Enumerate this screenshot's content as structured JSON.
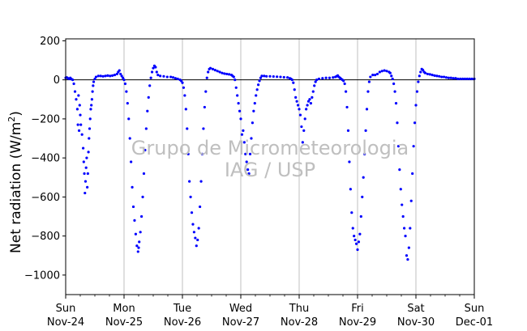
{
  "chart_data": {
    "type": "scatter",
    "title": "",
    "ylabel_main": "Net radiation (W/m",
    "ylabel_sup": "2",
    "ylabel_close": ")",
    "xlabel": "",
    "ylim": [
      -1100,
      210
    ],
    "xlim": [
      0,
      7
    ],
    "yticks": [
      200,
      0,
      -200,
      -400,
      -600,
      -800,
      -1000
    ],
    "ytick_labels": [
      "200",
      "0",
      "−200",
      "−400",
      "−600",
      "−800",
      "−1000"
    ],
    "xticks": [
      {
        "x": 0,
        "day": "Sun",
        "date": "Nov-24"
      },
      {
        "x": 1,
        "day": "Mon",
        "date": "Nov-25"
      },
      {
        "x": 2,
        "day": "Tue",
        "date": "Nov-26"
      },
      {
        "x": 3,
        "day": "Wed",
        "date": "Nov-27"
      },
      {
        "x": 4,
        "day": "Thu",
        "date": "Nov-28"
      },
      {
        "x": 5,
        "day": "Fri",
        "date": "Nov-29"
      },
      {
        "x": 6,
        "day": "Sat",
        "date": "Nov-30"
      },
      {
        "x": 7,
        "day": "Sun",
        "date": "Dec-01"
      }
    ],
    "minor_ticks_per_day": 3,
    "grid": "vertical major lines",
    "zero_line": true,
    "marker_color": "#0000ff",
    "watermark": [
      "Grupo de Micrometeorologia",
      "IAG / USP"
    ],
    "series": [
      {
        "points": [
          [
            0.0,
            10
          ],
          [
            0.02,
            12
          ],
          [
            0.04,
            8
          ],
          [
            0.06,
            5
          ],
          [
            0.08,
            10
          ],
          [
            0.1,
            4
          ],
          [
            0.12,
            0
          ],
          [
            0.14,
            -20
          ],
          [
            0.16,
            -60
          ],
          [
            0.18,
            -100
          ],
          [
            0.2,
            -150
          ],
          [
            0.21,
            -230
          ],
          [
            0.22,
            -80
          ],
          [
            0.23,
            -260
          ],
          [
            0.24,
            -130
          ],
          [
            0.25,
            -180
          ],
          [
            0.26,
            -230
          ],
          [
            0.28,
            -280
          ],
          [
            0.3,
            -350
          ],
          [
            0.31,
            -420
          ],
          [
            0.32,
            -480
          ],
          [
            0.33,
            -580
          ],
          [
            0.34,
            -520
          ],
          [
            0.35,
            -450
          ],
          [
            0.36,
            -400
          ],
          [
            0.37,
            -550
          ],
          [
            0.38,
            -480
          ],
          [
            0.39,
            -370
          ],
          [
            0.4,
            -300
          ],
          [
            0.41,
            -250
          ],
          [
            0.42,
            -200
          ],
          [
            0.43,
            -150
          ],
          [
            0.44,
            -130
          ],
          [
            0.45,
            -100
          ],
          [
            0.46,
            -60
          ],
          [
            0.47,
            -30
          ],
          [
            0.48,
            -10
          ],
          [
            0.5,
            5
          ],
          [
            0.52,
            15
          ],
          [
            0.56,
            20
          ],
          [
            0.6,
            20
          ],
          [
            0.64,
            18
          ],
          [
            0.68,
            20
          ],
          [
            0.72,
            22
          ],
          [
            0.76,
            20
          ],
          [
            0.8,
            22
          ],
          [
            0.84,
            25
          ],
          [
            0.88,
            30
          ],
          [
            0.9,
            40
          ],
          [
            0.92,
            48
          ],
          [
            0.94,
            30
          ],
          [
            0.96,
            20
          ],
          [
            0.98,
            10
          ],
          [
            1.0,
            0
          ],
          [
            1.02,
            -20
          ],
          [
            1.04,
            -60
          ],
          [
            1.06,
            -120
          ],
          [
            1.08,
            -200
          ],
          [
            1.1,
            -300
          ],
          [
            1.12,
            -420
          ],
          [
            1.14,
            -550
          ],
          [
            1.16,
            -650
          ],
          [
            1.18,
            -720
          ],
          [
            1.2,
            -790
          ],
          [
            1.22,
            -850
          ],
          [
            1.24,
            -880
          ],
          [
            1.25,
            -860
          ],
          [
            1.26,
            -830
          ],
          [
            1.28,
            -780
          ],
          [
            1.3,
            -700
          ],
          [
            1.32,
            -600
          ],
          [
            1.34,
            -480
          ],
          [
            1.36,
            -360
          ],
          [
            1.38,
            -250
          ],
          [
            1.4,
            -160
          ],
          [
            1.42,
            -90
          ],
          [
            1.44,
            -30
          ],
          [
            1.46,
            10
          ],
          [
            1.48,
            40
          ],
          [
            1.5,
            60
          ],
          [
            1.52,
            72
          ],
          [
            1.54,
            65
          ],
          [
            1.56,
            40
          ],
          [
            1.58,
            25
          ],
          [
            1.62,
            20
          ],
          [
            1.68,
            18
          ],
          [
            1.74,
            15
          ],
          [
            1.8,
            15
          ],
          [
            1.84,
            12
          ],
          [
            1.88,
            8
          ],
          [
            1.92,
            5
          ],
          [
            1.96,
            0
          ],
          [
            1.98,
            -5
          ],
          [
            2.0,
            -15
          ],
          [
            2.02,
            -40
          ],
          [
            2.04,
            -80
          ],
          [
            2.06,
            -150
          ],
          [
            2.08,
            -250
          ],
          [
            2.1,
            -380
          ],
          [
            2.12,
            -520
          ],
          [
            2.14,
            -600
          ],
          [
            2.16,
            -680
          ],
          [
            2.18,
            -740
          ],
          [
            2.2,
            -780
          ],
          [
            2.22,
            -810
          ],
          [
            2.24,
            -850
          ],
          [
            2.26,
            -820
          ],
          [
            2.28,
            -760
          ],
          [
            2.3,
            -650
          ],
          [
            2.32,
            -520
          ],
          [
            2.34,
            -380
          ],
          [
            2.36,
            -250
          ],
          [
            2.38,
            -140
          ],
          [
            2.4,
            -60
          ],
          [
            2.42,
            10
          ],
          [
            2.44,
            40
          ],
          [
            2.46,
            55
          ],
          [
            2.48,
            60
          ],
          [
            2.52,
            55
          ],
          [
            2.56,
            50
          ],
          [
            2.6,
            45
          ],
          [
            2.64,
            40
          ],
          [
            2.68,
            35
          ],
          [
            2.72,
            32
          ],
          [
            2.76,
            30
          ],
          [
            2.8,
            28
          ],
          [
            2.84,
            25
          ],
          [
            2.86,
            20
          ],
          [
            2.88,
            15
          ],
          [
            2.9,
            0
          ],
          [
            2.92,
            -40
          ],
          [
            2.94,
            -80
          ],
          [
            2.96,
            -120
          ],
          [
            2.98,
            -160
          ],
          [
            3.0,
            -200
          ],
          [
            3.02,
            -280
          ],
          [
            3.04,
            -260
          ],
          [
            3.06,
            -320
          ],
          [
            3.08,
            -380
          ],
          [
            3.1,
            -420
          ],
          [
            3.12,
            -460
          ],
          [
            3.14,
            -480
          ],
          [
            3.16,
            -380
          ],
          [
            3.18,
            -300
          ],
          [
            3.2,
            -220
          ],
          [
            3.22,
            -160
          ],
          [
            3.24,
            -120
          ],
          [
            3.26,
            -80
          ],
          [
            3.28,
            -50
          ],
          [
            3.3,
            -25
          ],
          [
            3.32,
            -5
          ],
          [
            3.34,
            10
          ],
          [
            3.36,
            20
          ],
          [
            3.4,
            20
          ],
          [
            3.44,
            18
          ],
          [
            3.5,
            18
          ],
          [
            3.56,
            17
          ],
          [
            3.62,
            16
          ],
          [
            3.68,
            15
          ],
          [
            3.74,
            13
          ],
          [
            3.8,
            12
          ],
          [
            3.84,
            8
          ],
          [
            3.86,
            5
          ],
          [
            3.88,
            0
          ],
          [
            3.9,
            -15
          ],
          [
            3.92,
            -50
          ],
          [
            3.94,
            -90
          ],
          [
            3.96,
            -110
          ],
          [
            3.98,
            -130
          ],
          [
            4.0,
            -150
          ],
          [
            4.02,
            -180
          ],
          [
            4.04,
            -240
          ],
          [
            4.06,
            -320
          ],
          [
            4.08,
            -260
          ],
          [
            4.1,
            -200
          ],
          [
            4.12,
            -150
          ],
          [
            4.14,
            -130
          ],
          [
            4.16,
            -110
          ],
          [
            4.18,
            -100
          ],
          [
            4.2,
            -120
          ],
          [
            4.22,
            -90
          ],
          [
            4.24,
            -60
          ],
          [
            4.26,
            -30
          ],
          [
            4.28,
            -10
          ],
          [
            4.3,
            0
          ],
          [
            4.34,
            5
          ],
          [
            4.4,
            8
          ],
          [
            4.46,
            10
          ],
          [
            4.52,
            10
          ],
          [
            4.58,
            12
          ],
          [
            4.62,
            15
          ],
          [
            4.64,
            18
          ],
          [
            4.66,
            22
          ],
          [
            4.68,
            15
          ],
          [
            4.7,
            10
          ],
          [
            4.72,
            5
          ],
          [
            4.74,
            0
          ],
          [
            4.76,
            -5
          ],
          [
            4.78,
            -20
          ],
          [
            4.8,
            -60
          ],
          [
            4.82,
            -140
          ],
          [
            4.84,
            -260
          ],
          [
            4.86,
            -420
          ],
          [
            4.88,
            -560
          ],
          [
            4.9,
            -680
          ],
          [
            4.92,
            -760
          ],
          [
            4.94,
            -800
          ],
          [
            4.96,
            -820
          ],
          [
            4.98,
            -840
          ],
          [
            5.0,
            -870
          ],
          [
            5.02,
            -830
          ],
          [
            5.04,
            -790
          ],
          [
            5.06,
            -700
          ],
          [
            5.08,
            -600
          ],
          [
            5.1,
            -500
          ],
          [
            5.12,
            -380
          ],
          [
            5.14,
            -260
          ],
          [
            5.16,
            -150
          ],
          [
            5.18,
            -60
          ],
          [
            5.2,
            -10
          ],
          [
            5.22,
            15
          ],
          [
            5.26,
            25
          ],
          [
            5.3,
            25
          ],
          [
            5.34,
            30
          ],
          [
            5.38,
            40
          ],
          [
            5.42,
            45
          ],
          [
            5.46,
            48
          ],
          [
            5.5,
            45
          ],
          [
            5.54,
            40
          ],
          [
            5.56,
            35
          ],
          [
            5.58,
            20
          ],
          [
            5.6,
            5
          ],
          [
            5.62,
            -20
          ],
          [
            5.64,
            -60
          ],
          [
            5.66,
            -120
          ],
          [
            5.68,
            -220
          ],
          [
            5.7,
            -340
          ],
          [
            5.72,
            -460
          ],
          [
            5.74,
            -560
          ],
          [
            5.76,
            -640
          ],
          [
            5.78,
            -700
          ],
          [
            5.8,
            -760
          ],
          [
            5.82,
            -800
          ],
          [
            5.84,
            -900
          ],
          [
            5.86,
            -920
          ],
          [
            5.88,
            -860
          ],
          [
            5.9,
            -760
          ],
          [
            5.92,
            -620
          ],
          [
            5.94,
            -480
          ],
          [
            5.96,
            -340
          ],
          [
            5.98,
            -220
          ],
          [
            6.0,
            -130
          ],
          [
            6.02,
            -60
          ],
          [
            6.04,
            -10
          ],
          [
            6.06,
            20
          ],
          [
            6.08,
            40
          ],
          [
            6.1,
            55
          ],
          [
            6.12,
            50
          ],
          [
            6.14,
            40
          ],
          [
            6.16,
            35
          ],
          [
            6.2,
            30
          ],
          [
            6.24,
            28
          ],
          [
            6.28,
            25
          ],
          [
            6.32,
            22
          ],
          [
            6.36,
            20
          ],
          [
            6.4,
            18
          ],
          [
            6.44,
            15
          ],
          [
            6.48,
            15
          ],
          [
            6.52,
            12
          ],
          [
            6.56,
            10
          ],
          [
            6.6,
            10
          ],
          [
            6.64,
            8
          ],
          [
            6.68,
            8
          ],
          [
            6.72,
            5
          ],
          [
            6.76,
            5
          ],
          [
            6.8,
            5
          ],
          [
            6.84,
            5
          ],
          [
            6.88,
            5
          ],
          [
            6.92,
            5
          ],
          [
            6.96,
            5
          ],
          [
            7.0,
            5
          ]
        ]
      }
    ]
  }
}
